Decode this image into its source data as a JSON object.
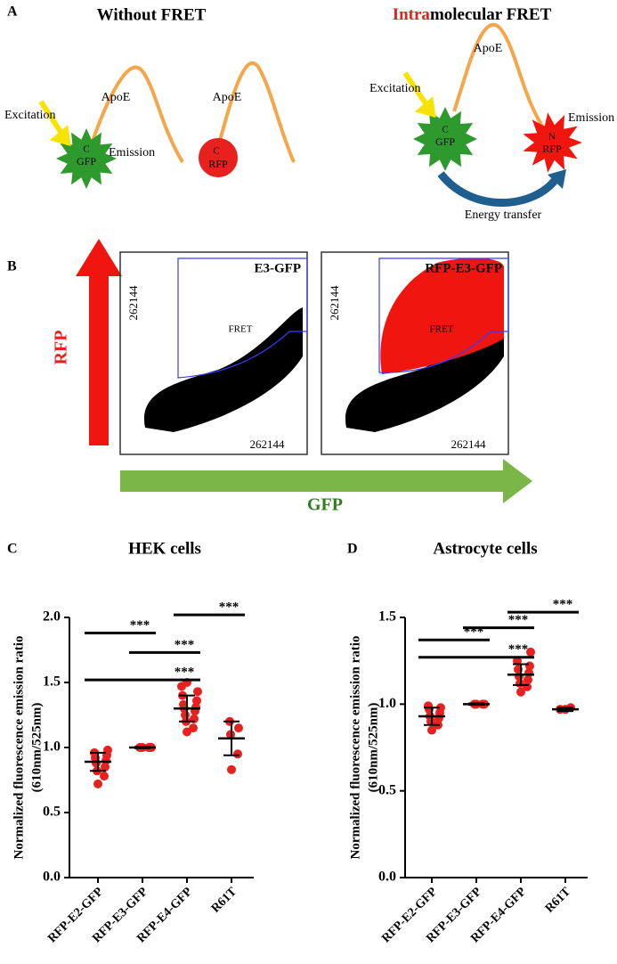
{
  "panel_a": {
    "label": "A",
    "title_left": "Without FRET",
    "title_right_red": "Intra",
    "title_right_rest": "molecular FRET",
    "apoe": "ApoE",
    "excitation": "Excitation",
    "emission": "Emission",
    "gfp": "GFP",
    "rfp": "RFP",
    "c_term": "C",
    "n_term": "N",
    "energy_transfer": "Energy transfer"
  },
  "panel_b": {
    "label": "B",
    "y_axis": "RFP",
    "x_axis": "GFP",
    "plots": [
      {
        "title": "E3-GFP",
        "gate": "FRET",
        "axis_max": "262144"
      },
      {
        "title": "RFP-E3-GFP",
        "gate": "FRET",
        "axis_max": "262144"
      }
    ]
  },
  "chart_data": [
    {
      "type": "strip",
      "label": "C",
      "title": "HEK cells",
      "y_label": "Normalized fluorescence emission ratio",
      "y_label_unit": "(610nm/525nm)",
      "categories": [
        "RFP-E2-GFP",
        "RFP-E3-GFP",
        "RFP-E4-GFP",
        "R61T"
      ],
      "color": "#e8201e",
      "points": [
        [
          0.72,
          0.78,
          0.82,
          0.85,
          0.88,
          0.9,
          0.92,
          0.94,
          0.96,
          0.98
        ],
        [
          1,
          1,
          1,
          1,
          1,
          1,
          1,
          1
        ],
        [
          1.12,
          1.15,
          1.2,
          1.22,
          1.25,
          1.28,
          1.3,
          1.31,
          1.33,
          1.36,
          1.4,
          1.43,
          1.47,
          1.5
        ],
        [
          0.83,
          0.95,
          1.1,
          1.15,
          1.2
        ]
      ],
      "means": [
        0.89,
        1.0,
        1.3,
        1.07
      ],
      "sd": [
        0.07,
        0.005,
        0.1,
        0.13
      ],
      "ylim": [
        0,
        2.0
      ],
      "yticks": [
        {
          "value": 0,
          "label": "0.0"
        },
        {
          "value": 0.5,
          "label": "0.5"
        },
        {
          "value": 1,
          "label": "1.0"
        },
        {
          "value": 1.5,
          "label": "1.5"
        },
        {
          "value": 2,
          "label": "2.0"
        }
      ],
      "comparisons": [
        {
          "from": "RFP-E2-GFP",
          "to": "RFP-E4-GFP",
          "y": 1.52,
          "label": "***"
        },
        {
          "from": "RFP-E3-GFP",
          "to": "RFP-E4-GFP",
          "y": 1.73,
          "label": "***"
        },
        {
          "from": "RFP-E2-GFP",
          "to": "RFP-E3-GFP",
          "y": 1.88,
          "label": "***"
        },
        {
          "from": "RFP-E4-GFP",
          "to": "R61T",
          "y": 2.02,
          "label": "***"
        }
      ]
    },
    {
      "type": "strip",
      "label": "D",
      "title": "Astrocyte cells",
      "y_label": "Normalized fluorescence emission ratio",
      "y_label_unit": "(610nm/525nm)",
      "categories": [
        "RFP-E2-GFP",
        "RFP-E3-GFP",
        "RFP-E4-GFP",
        "R61T"
      ],
      "color": "#e8201e",
      "points": [
        [
          0.85,
          0.88,
          0.9,
          0.92,
          0.93,
          0.95,
          0.97,
          0.98,
          0.99
        ],
        [
          1,
          1,
          1,
          1,
          1,
          1
        ],
        [
          1.07,
          1.1,
          1.12,
          1.14,
          1.16,
          1.18,
          1.2,
          1.22,
          1.25,
          1.3
        ],
        [
          0.97,
          0.97,
          0.98
        ]
      ],
      "means": [
        0.93,
        1.0,
        1.17,
        0.97
      ],
      "sd": [
        0.05,
        0.004,
        0.06,
        0.01
      ],
      "ylim": [
        0,
        1.5
      ],
      "yticks": [
        {
          "value": 0,
          "label": "0.0"
        },
        {
          "value": 0.5,
          "label": "0.5"
        },
        {
          "value": 1,
          "label": "1.0"
        },
        {
          "value": 1.5,
          "label": "1.5"
        }
      ],
      "comparisons": [
        {
          "from": "RFP-E2-GFP",
          "to": "RFP-E4-GFP",
          "y": 1.27,
          "label": "***"
        },
        {
          "from": "RFP-E2-GFP",
          "to": "RFP-E3-GFP",
          "y": 1.37,
          "label": "***"
        },
        {
          "from": "RFP-E3-GFP",
          "to": "RFP-E4-GFP",
          "y": 1.44,
          "label": "***"
        },
        {
          "from": "RFP-E4-GFP",
          "to": "R61T",
          "y": 1.53,
          "label": "***"
        }
      ]
    }
  ]
}
